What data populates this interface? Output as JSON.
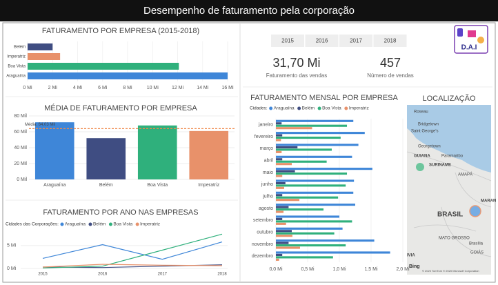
{
  "header": {
    "title": "Desempenho de faturamento pela corporação"
  },
  "slicer": {
    "years": [
      2015,
      2016,
      2017,
      2018
    ]
  },
  "logo": "D.A.I",
  "kpis": [
    {
      "value": "31,70 Mi",
      "label": "Faturamento das vendas"
    },
    {
      "value": 457,
      "label": "Número de vendas"
    }
  ],
  "chart_data": [
    {
      "type": "hbar",
      "title": "FATURAMENTO POR EMPRESA (2015-2018)",
      "categories": [
        "Belém",
        "Imperatriz",
        "Boa Vista",
        "Araguaína"
      ],
      "values": [
        2.0,
        2.6,
        12.1,
        16.0
      ],
      "colors": [
        "#3f4d82",
        "#e8916a",
        "#2fb07c",
        "#3e86d8"
      ],
      "xlim": [
        0,
        16
      ],
      "xticks": [
        {
          "value": 0,
          "label": "0 Mi"
        },
        {
          "value": 2,
          "label": "2 Mi"
        },
        {
          "value": 4,
          "label": "4 Mi"
        },
        {
          "value": 6,
          "label": "6 Mi"
        },
        {
          "value": 8,
          "label": "8 Mi"
        },
        {
          "value": 10,
          "label": "10 Mi"
        },
        {
          "value": 12,
          "label": "12 Mi"
        },
        {
          "value": 14,
          "label": "14 Mi"
        },
        {
          "value": 16,
          "label": "16 Mi"
        }
      ]
    },
    {
      "type": "bar",
      "title": "MÉDIA DE FATURAMENTO POR EMPRESA",
      "categories": [
        "Araguaína",
        "Belém",
        "Boa Vista",
        "Imperatriz"
      ],
      "values": [
        72,
        52,
        68,
        61
      ],
      "colors": [
        "#3e86d8",
        "#3f4d82",
        "#2fb07c",
        "#e8916a"
      ],
      "ylim": [
        0,
        80
      ],
      "yticks": [
        {
          "value": 0,
          "label": "0 Mil"
        },
        {
          "value": 20,
          "label": "20 Mil"
        },
        {
          "value": 40,
          "label": "40 Mil"
        },
        {
          "value": 60,
          "label": "60 Mil"
        },
        {
          "value": 80,
          "label": "80 Mil"
        }
      ],
      "reference_line": {
        "value": 64.03,
        "label": "Média: 64,03 Mil",
        "color": "#f08a4b"
      }
    },
    {
      "type": "line",
      "title": "FATURAMENTO POR ANO NAS EMPRESAS",
      "legend_title": "Cidades das Corporações:",
      "categories": [
        "2015",
        "2016",
        "2017",
        "2018"
      ],
      "series": [
        {
          "name": "Araguaína",
          "color": "#3e86d8",
          "values": [
            2.2,
            5.2,
            2.0,
            5.8
          ]
        },
        {
          "name": "Belém",
          "color": "#3f4d82",
          "values": [
            0.3,
            0.2,
            0.5,
            0.8
          ]
        },
        {
          "name": "Boa Vista",
          "color": "#2fb07c",
          "values": [
            0.1,
            0.5,
            4.0,
            7.5
          ]
        },
        {
          "name": "Imperatriz",
          "color": "#e8916a",
          "values": [
            0.3,
            0.9,
            0.7,
            0.6
          ]
        }
      ],
      "ylim": [
        0,
        8
      ],
      "yticks": [
        {
          "value": 0,
          "label": "0 Mi"
        },
        {
          "value": 5,
          "label": "5 Mi"
        }
      ]
    },
    {
      "type": "grouped-hbar",
      "title": "FATURAMENTO MENSAL POR EMPRESA",
      "legend_title": "Cidades:",
      "categories": [
        "janeiro",
        "fevereiro",
        "março",
        "abril",
        "maio",
        "junho",
        "julho",
        "agosto",
        "setembro",
        "outubro",
        "novembro",
        "dezembro"
      ],
      "series": [
        {
          "name": "Araguaína",
          "color": "#3e86d8",
          "values": [
            1.22,
            1.4,
            1.3,
            1.2,
            1.52,
            1.23,
            1.22,
            1.25,
            1.0,
            1.05,
            1.55,
            1.8
          ]
        },
        {
          "name": "Belém",
          "color": "#3f4d82",
          "values": [
            0.09,
            0.1,
            0.34,
            0.1,
            0.3,
            0.15,
            0.1,
            0.2,
            0.1,
            0.25,
            0.2,
            0.1
          ]
        },
        {
          "name": "Boa Vista",
          "color": "#2fb07c",
          "values": [
            1.12,
            1.02,
            0.88,
            0.8,
            1.12,
            1.1,
            0.98,
            0.75,
            1.2,
            0.92,
            1.1,
            0.9
          ]
        },
        {
          "name": "Imperatriz",
          "color": "#e8916a",
          "values": [
            0.57,
            0.08,
            0.09,
            0.25,
            0.1,
            0.13,
            0.37,
            0.12,
            0.16,
            0.26,
            0.38,
            0.05
          ]
        }
      ],
      "xlim": [
        0,
        2
      ],
      "xticks": [
        {
          "value": 0,
          "label": "0,0 Mi"
        },
        {
          "value": 0.5,
          "label": "0,5 Mi"
        },
        {
          "value": 1,
          "label": "1,0 Mi"
        },
        {
          "value": 1.5,
          "label": "1,5 Mi"
        },
        {
          "value": 2,
          "label": "2,0 Mi"
        }
      ]
    }
  ],
  "map": {
    "title": "LOCALIZAÇÃO",
    "labels": [
      "Roseau",
      "Bridgetown",
      "Saint George's",
      "Georgetown",
      "GUIANA",
      "Paramaribo",
      "SURINAME",
      "AMAPÁ",
      "BRASIL",
      "MATO GROSSO",
      "Brasília",
      "GOIÁS",
      "IVIA",
      "MARAN"
    ],
    "brand": "Bing",
    "credit": "© 2020 TomTom © 2020 Microsoft Corporation"
  }
}
